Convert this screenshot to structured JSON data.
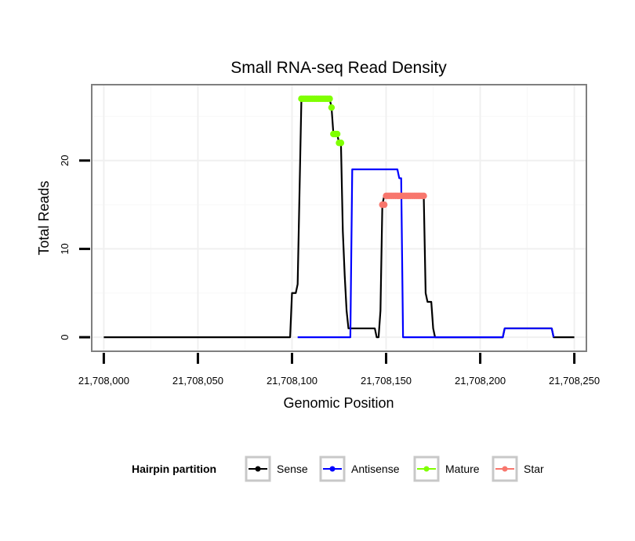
{
  "chart_data": {
    "type": "line",
    "title": "Small RNA-seq Read Density",
    "xlabel": "Genomic Position",
    "ylabel": "Total Reads",
    "xlim": [
      21707994,
      21708256
    ],
    "ylim": [
      -1.5,
      28.5
    ],
    "x_ticks": [
      21708000,
      21708050,
      21708100,
      21708150,
      21708200,
      21708250
    ],
    "x_tick_labels": [
      "21,708,000",
      "21,708,050",
      "21,708,100",
      "21,708,150",
      "21,708,200",
      "21,708,250"
    ],
    "y_ticks": [
      0,
      10,
      20
    ],
    "y_tick_labels": [
      "0",
      "10",
      "20"
    ],
    "grid": true,
    "legend": {
      "title": "Hairpin partition",
      "position": "bottom",
      "entries": [
        "Sense",
        "Antisense",
        "Mature",
        "Star"
      ]
    },
    "series": [
      {
        "name": "Sense",
        "color": "#000000",
        "style": "line",
        "points": [
          [
            21708000,
            0
          ],
          [
            21708099,
            0
          ],
          [
            21708100,
            5
          ],
          [
            21708102,
            5
          ],
          [
            21708103,
            6
          ],
          [
            21708105,
            27
          ],
          [
            21708120,
            27
          ],
          [
            21708121,
            26
          ],
          [
            21708122,
            23
          ],
          [
            21708124,
            23
          ],
          [
            21708125,
            22
          ],
          [
            21708126,
            22
          ],
          [
            21708127,
            12
          ],
          [
            21708128,
            7
          ],
          [
            21708129,
            3
          ],
          [
            21708130,
            1
          ],
          [
            21708132,
            1
          ],
          [
            21708144,
            1
          ],
          [
            21708145,
            0
          ],
          [
            21708146,
            0
          ],
          [
            21708147,
            3
          ],
          [
            21708148,
            15
          ],
          [
            21708149,
            16
          ],
          [
            21708168,
            16
          ],
          [
            21708170,
            16
          ],
          [
            21708171,
            5
          ],
          [
            21708172,
            4
          ],
          [
            21708174,
            4
          ],
          [
            21708175,
            1
          ],
          [
            21708176,
            0
          ],
          [
            21708212,
            0
          ],
          [
            21708213,
            1
          ],
          [
            21708238,
            1
          ],
          [
            21708239,
            0
          ],
          [
            21708250,
            0
          ]
        ]
      },
      {
        "name": "Antisense",
        "color": "#0000ff",
        "style": "line",
        "points": [
          [
            21708103,
            0
          ],
          [
            21708131,
            0
          ],
          [
            21708132,
            19
          ],
          [
            21708156,
            19
          ],
          [
            21708157,
            18
          ],
          [
            21708158,
            18
          ],
          [
            21708159,
            0
          ],
          [
            21708212,
            0
          ],
          [
            21708213,
            1
          ],
          [
            21708238,
            1
          ],
          [
            21708239,
            0
          ]
        ]
      },
      {
        "name": "Mature",
        "color": "#7fff00",
        "style": "points",
        "points": [
          [
            21708105,
            27
          ],
          [
            21708106,
            27
          ],
          [
            21708107,
            27
          ],
          [
            21708108,
            27
          ],
          [
            21708109,
            27
          ],
          [
            21708110,
            27
          ],
          [
            21708111,
            27
          ],
          [
            21708112,
            27
          ],
          [
            21708113,
            27
          ],
          [
            21708114,
            27
          ],
          [
            21708115,
            27
          ],
          [
            21708116,
            27
          ],
          [
            21708117,
            27
          ],
          [
            21708118,
            27
          ],
          [
            21708119,
            27
          ],
          [
            21708120,
            27
          ],
          [
            21708121,
            26
          ],
          [
            21708122,
            23
          ],
          [
            21708123,
            23
          ],
          [
            21708124,
            23
          ],
          [
            21708125,
            22
          ],
          [
            21708126,
            22
          ]
        ]
      },
      {
        "name": "Star",
        "color": "#f8766d",
        "style": "points",
        "points": [
          [
            21708148,
            15
          ],
          [
            21708149,
            15
          ],
          [
            21708150,
            16
          ],
          [
            21708151,
            16
          ],
          [
            21708152,
            16
          ],
          [
            21708153,
            16
          ],
          [
            21708154,
            16
          ],
          [
            21708155,
            16
          ],
          [
            21708156,
            16
          ],
          [
            21708157,
            16
          ],
          [
            21708158,
            16
          ],
          [
            21708159,
            16
          ],
          [
            21708160,
            16
          ],
          [
            21708161,
            16
          ],
          [
            21708162,
            16
          ],
          [
            21708163,
            16
          ],
          [
            21708164,
            16
          ],
          [
            21708165,
            16
          ],
          [
            21708166,
            16
          ],
          [
            21708167,
            16
          ],
          [
            21708168,
            16
          ],
          [
            21708169,
            16
          ],
          [
            21708170,
            16
          ]
        ]
      }
    ]
  }
}
